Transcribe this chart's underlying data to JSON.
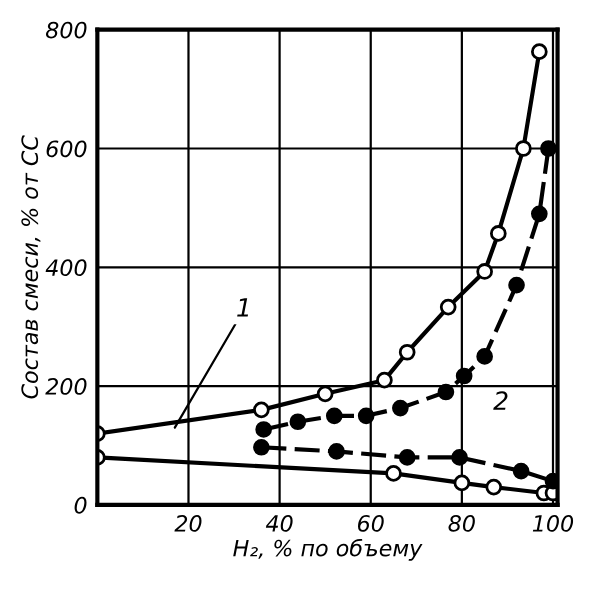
{
  "chart_data": {
    "type": "line",
    "xlabel": "H₂, % по объему",
    "ylabel": "Состав смеси, % от CC",
    "xlim": [
      0,
      101
    ],
    "ylim": [
      0,
      800
    ],
    "xticks": [
      20,
      40,
      60,
      80,
      100
    ],
    "yticks": [
      0,
      200,
      400,
      600,
      800
    ],
    "grid": true,
    "series": [
      {
        "color": "#000000",
        "marker": "circle",
        "line_style": "solid",
        "x": [
          0,
          36,
          50,
          63,
          68,
          77,
          85,
          88,
          93.5,
          97
        ],
        "values": [
          120,
          160,
          187,
          210,
          257,
          333,
          393,
          457,
          600,
          763
        ]
      },
      {
        "color": "#000000",
        "marker": "circle",
        "line_style": "solid",
        "x": [
          0,
          65,
          80,
          87,
          98,
          100
        ],
        "values": [
          80,
          53,
          37,
          30,
          20,
          20
        ]
      },
      {
        "color": "#000000",
        "marker": "circle",
        "line_style": "dashed",
        "x": [
          36.5,
          44,
          52,
          59,
          66.5,
          76.5,
          80.5,
          85,
          92,
          97,
          99
        ],
        "values": [
          127,
          140,
          150,
          150,
          163,
          190,
          217,
          250,
          370,
          490,
          600
        ]
      },
      {
        "color": "#000000",
        "marker": "circle",
        "line_style": "dashed",
        "x": [
          36,
          52.5,
          68,
          79.5,
          93,
          100
        ],
        "values": [
          97,
          90,
          80,
          80,
          57,
          40
        ]
      }
    ],
    "annotations": [
      {
        "text": "1",
        "x": 17,
        "y": 130
      },
      "2"
    ]
  }
}
